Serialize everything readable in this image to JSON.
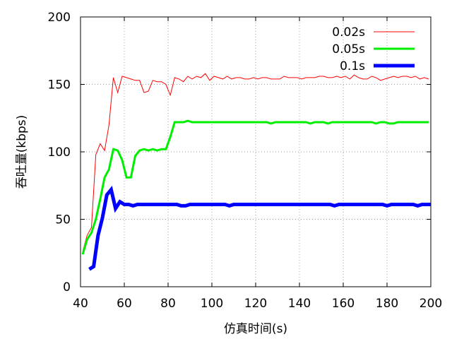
{
  "chart_data": {
    "type": "line",
    "title": "",
    "xlabel": "仿真时间(s)",
    "ylabel": "吞吐量(kbps)",
    "xlim": [
      40,
      200
    ],
    "ylim": [
      0,
      200
    ],
    "xticks": [
      40,
      60,
      80,
      100,
      120,
      140,
      160,
      180,
      200
    ],
    "yticks": [
      0,
      50,
      100,
      150,
      200
    ],
    "grid": true,
    "legend_position": "top-right",
    "series": [
      {
        "name": "0.02s",
        "color": "#ff0000",
        "width": 1,
        "x": [
          41,
          43,
          45,
          47,
          49,
          51,
          53,
          55,
          57,
          59,
          61,
          63,
          65,
          67,
          69,
          71,
          73,
          75,
          77,
          79,
          81,
          83,
          85,
          87,
          89,
          91,
          93,
          95,
          97,
          99,
          101,
          103,
          105,
          107,
          109,
          111,
          113,
          115,
          117,
          119,
          121,
          123,
          125,
          127,
          129,
          131,
          133,
          135,
          137,
          139,
          141,
          143,
          145,
          147,
          149,
          151,
          153,
          155,
          157,
          159,
          161,
          163,
          165,
          167,
          169,
          171,
          173,
          175,
          177,
          179,
          181,
          183,
          185,
          187,
          189,
          191,
          193,
          195,
          197,
          199
        ],
        "values": [
          26,
          38,
          44,
          98,
          106,
          101,
          120,
          155,
          144,
          156,
          155,
          154,
          153,
          153,
          144,
          145,
          153,
          152,
          152,
          150,
          142,
          155,
          154,
          152,
          156,
          154,
          156,
          155,
          158,
          153,
          156,
          155,
          154,
          156,
          154,
          155,
          155,
          154,
          154,
          155,
          154,
          155,
          155,
          154,
          154,
          154,
          156,
          155,
          155,
          155,
          154,
          155,
          155,
          155,
          156,
          156,
          155,
          155,
          156,
          155,
          156,
          154,
          157,
          155,
          154,
          154,
          156,
          155,
          153,
          154,
          155,
          156,
          155,
          156,
          156,
          155,
          156,
          154,
          155,
          154
        ]
      },
      {
        "name": "0.05s",
        "color": "#00ee00",
        "width": 3,
        "x": [
          41,
          43,
          45,
          47,
          49,
          51,
          53,
          55,
          57,
          59,
          61,
          63,
          65,
          67,
          69,
          71,
          73,
          75,
          77,
          79,
          81,
          83,
          85,
          87,
          89,
          91,
          93,
          95,
          97,
          99,
          101,
          103,
          105,
          107,
          109,
          111,
          113,
          115,
          117,
          119,
          121,
          123,
          125,
          127,
          129,
          131,
          133,
          135,
          137,
          139,
          141,
          143,
          145,
          147,
          149,
          151,
          153,
          155,
          157,
          159,
          161,
          163,
          165,
          167,
          169,
          171,
          173,
          175,
          177,
          179,
          181,
          183,
          185,
          187,
          189,
          191,
          193,
          195,
          197,
          199
        ],
        "values": [
          24,
          35,
          40,
          50,
          65,
          81,
          87,
          102,
          101,
          94,
          81,
          81,
          97,
          101,
          102,
          101,
          102,
          101,
          102,
          102,
          111,
          122,
          122,
          122,
          123,
          122,
          122,
          122,
          122,
          122,
          122,
          122,
          122,
          122,
          122,
          122,
          122,
          122,
          122,
          122,
          122,
          122,
          122,
          121,
          122,
          122,
          122,
          122,
          122,
          122,
          122,
          122,
          121,
          122,
          122,
          122,
          121,
          122,
          122,
          122,
          122,
          122,
          122,
          122,
          122,
          122,
          122,
          121,
          122,
          122,
          121,
          121,
          122,
          122,
          122,
          122,
          122,
          122,
          122,
          122
        ]
      },
      {
        "name": "0.1s",
        "color": "#0000ff",
        "width": 5,
        "x": [
          44,
          46,
          48,
          50,
          52,
          54,
          56,
          58,
          60,
          62,
          64,
          66,
          68,
          70,
          72,
          74,
          76,
          78,
          80,
          82,
          84,
          86,
          88,
          90,
          92,
          94,
          96,
          98,
          100,
          102,
          104,
          106,
          108,
          110,
          112,
          114,
          116,
          118,
          120,
          122,
          124,
          126,
          128,
          130,
          132,
          134,
          136,
          138,
          140,
          142,
          144,
          146,
          148,
          150,
          152,
          154,
          156,
          158,
          160,
          162,
          164,
          166,
          168,
          170,
          172,
          174,
          176,
          178,
          180,
          182,
          184,
          186,
          188,
          190,
          192,
          194,
          196,
          198,
          200
        ],
        "values": [
          13,
          15,
          38,
          51,
          68,
          72,
          58,
          63,
          61,
          61,
          60,
          61,
          61,
          61,
          61,
          61,
          61,
          61,
          61,
          61,
          61,
          60,
          60,
          61,
          61,
          61,
          61,
          61,
          61,
          61,
          61,
          61,
          60,
          61,
          61,
          61,
          61,
          61,
          61,
          61,
          61,
          61,
          61,
          61,
          61,
          61,
          61,
          61,
          61,
          61,
          61,
          61,
          61,
          61,
          61,
          61,
          60,
          61,
          61,
          61,
          61,
          61,
          61,
          61,
          61,
          61,
          61,
          61,
          60,
          61,
          61,
          61,
          61,
          61,
          61,
          60,
          61,
          61,
          61
        ]
      }
    ]
  }
}
